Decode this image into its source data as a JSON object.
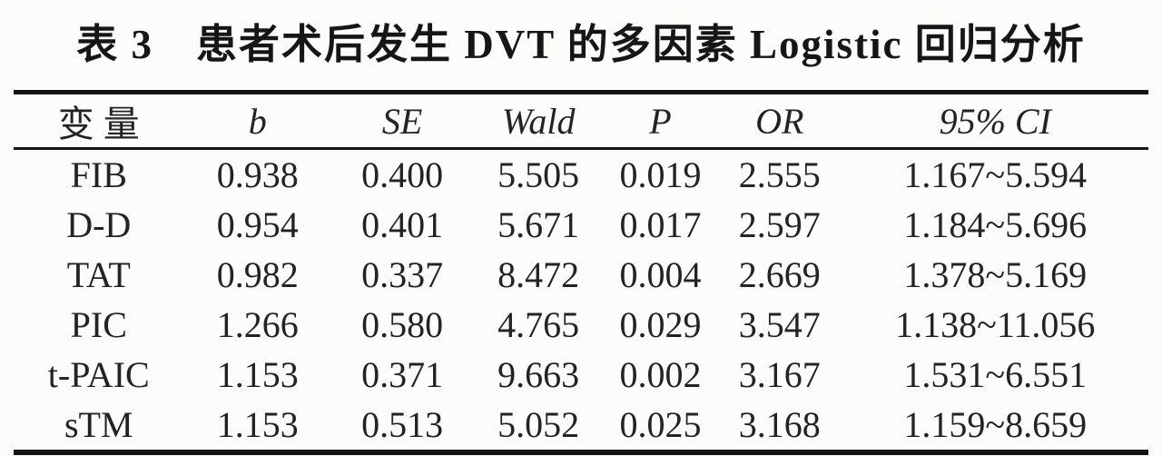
{
  "title": "表 3　患者术后发生 DVT 的多因素 Logistic 回归分析",
  "colors": {
    "background": "#fcfcfa",
    "text": "#232323",
    "rule": "#141414"
  },
  "chart_data": {
    "type": "table",
    "title": "表 3　患者术后发生 DVT 的多因素 Logistic 回归分析",
    "columns": [
      "变量",
      "b",
      "SE",
      "Wald",
      "P",
      "OR",
      "95% CI"
    ],
    "rows": [
      [
        "FIB",
        "0.938",
        "0.400",
        "5.505",
        "0.019",
        "2.555",
        "1.167~5.594"
      ],
      [
        "D-D",
        "0.954",
        "0.401",
        "5.671",
        "0.017",
        "2.597",
        "1.184~5.696"
      ],
      [
        "TAT",
        "0.982",
        "0.337",
        "8.472",
        "0.004",
        "2.669",
        "1.378~5.169"
      ],
      [
        "PIC",
        "1.266",
        "0.580",
        "4.765",
        "0.029",
        "3.547",
        "1.138~11.056"
      ],
      [
        "t-PAIC",
        "1.153",
        "0.371",
        "9.663",
        "0.002",
        "3.167",
        "1.531~6.551"
      ],
      [
        "sTM",
        "1.153",
        "0.513",
        "5.052",
        "0.025",
        "3.168",
        "1.159~8.659"
      ]
    ]
  }
}
